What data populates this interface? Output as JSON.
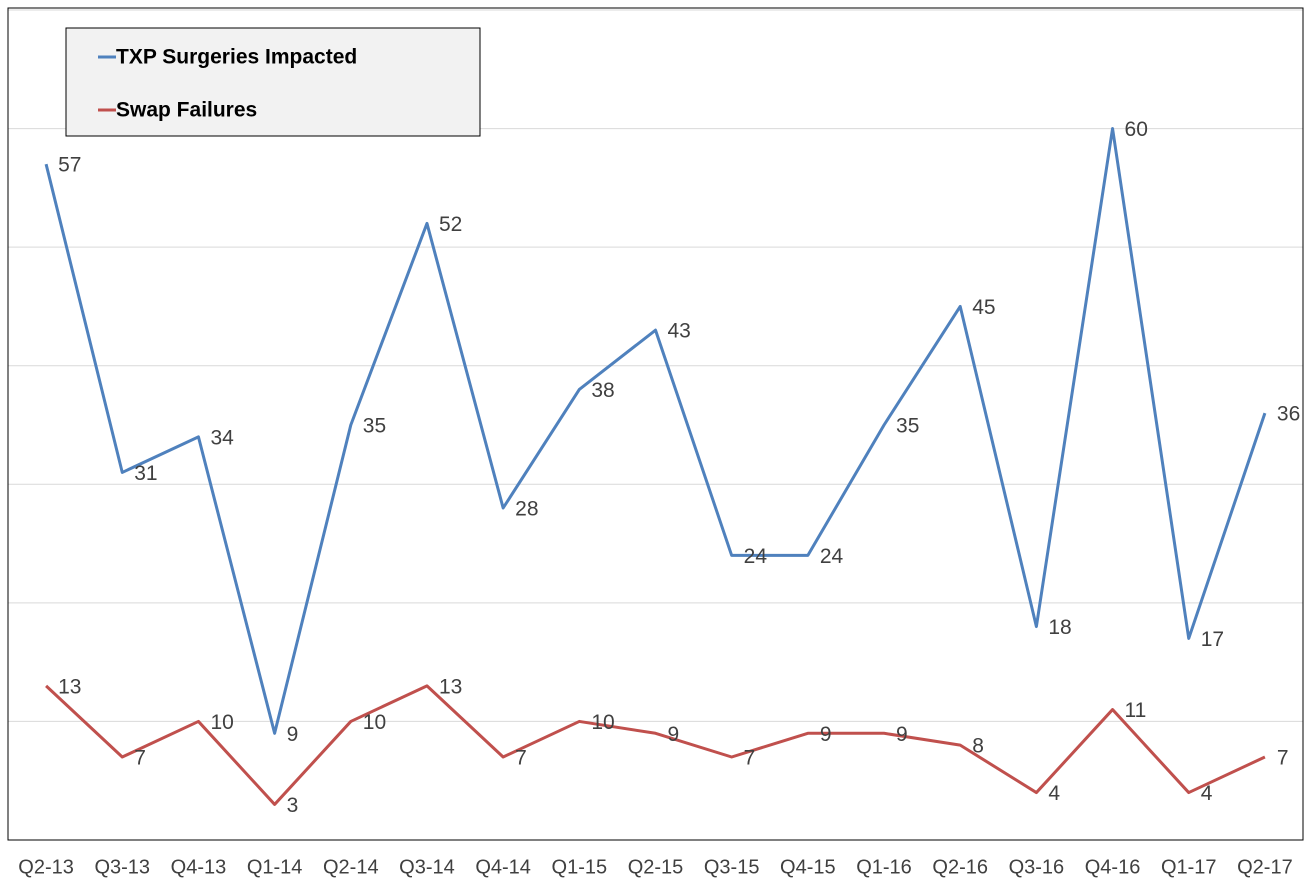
{
  "chart_data": {
    "type": "line",
    "categories": [
      "Q2-13",
      "Q3-13",
      "Q4-13",
      "Q1-14",
      "Q2-14",
      "Q3-14",
      "Q4-14",
      "Q1-15",
      "Q2-15",
      "Q3-15",
      "Q4-15",
      "Q1-16",
      "Q2-16",
      "Q3-16",
      "Q4-16",
      "Q1-17",
      "Q2-17"
    ],
    "series": [
      {
        "name": "TXP Surgeries Impacted",
        "color": "#4f81bd",
        "values": [
          57,
          31,
          34,
          9,
          35,
          52,
          28,
          38,
          43,
          24,
          24,
          35,
          45,
          18,
          60,
          17,
          36
        ]
      },
      {
        "name": "Swap Failures",
        "color": "#c0504d",
        "values": [
          13,
          7,
          10,
          3,
          10,
          13,
          7,
          10,
          9,
          7,
          9,
          9,
          8,
          4,
          11,
          4,
          7
        ]
      }
    ],
    "ylim": [
      0,
      70
    ],
    "yticks": [
      0,
      10,
      20,
      30,
      40,
      50,
      60,
      70
    ],
    "grid": true,
    "legend": "upper left"
  }
}
